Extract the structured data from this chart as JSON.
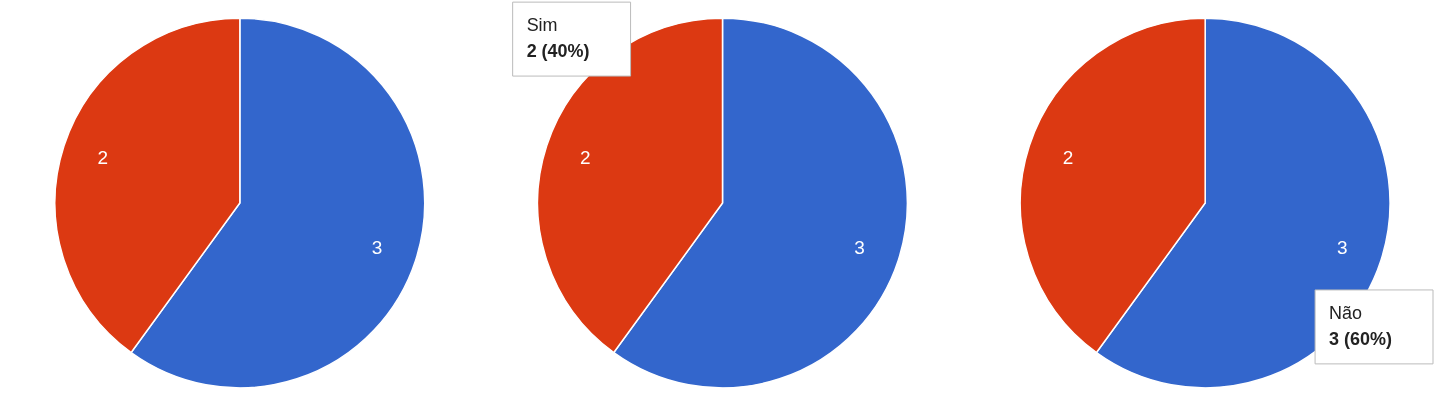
{
  "chart_data": [
    {
      "type": "pie",
      "categories": [
        null,
        null
      ],
      "values": [
        3,
        2
      ],
      "colors": [
        "#3366cc",
        "#dc3912"
      ],
      "data_labels": true
    },
    {
      "type": "pie",
      "categories": [
        null,
        null
      ],
      "values": [
        3,
        2
      ],
      "colors": [
        "#3366cc",
        "#dc3912"
      ],
      "data_labels": true,
      "annotations": [
        "Sim",
        "2 (40%)"
      ]
    },
    {
      "type": "pie",
      "categories": [
        null,
        null
      ],
      "values": [
        3,
        2
      ],
      "colors": [
        "#3366cc",
        "#dc3912"
      ],
      "data_labels": true,
      "annotations": [
        "Não",
        "3 (60%)"
      ]
    }
  ]
}
